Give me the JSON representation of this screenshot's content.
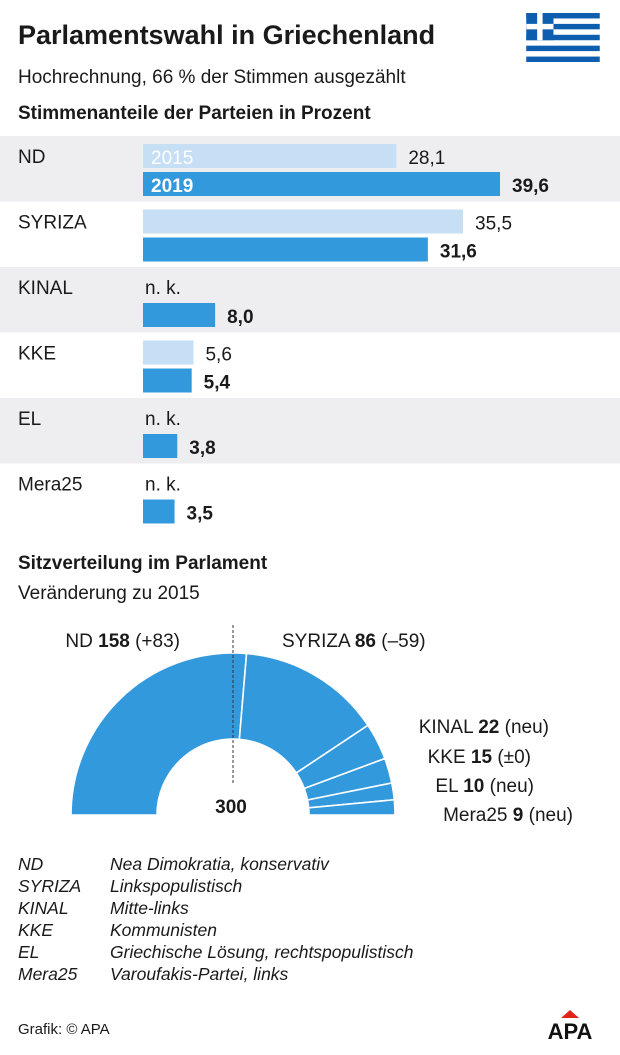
{
  "title": "Parlamentswahl in Griechenland",
  "subtitle": "Hochrechnung, 66 % der Stimmen ausgezählt",
  "section_shares": "Stimmenanteile der Parteien in Prozent",
  "section_seats": "Sitzverteilung im Parlament",
  "seats_subtitle": "Veränderung zu 2015",
  "seats_total": "300",
  "flag_icon": "greek-flag-icon",
  "colors": {
    "bar_2015": "#c6dff5",
    "bar_2019": "#3399dd",
    "row_band": "#eeeef0",
    "seat_fill": "#3399dd",
    "text": "#1a1a1a",
    "logo": "#e2231a"
  },
  "chart_data": [
    {
      "type": "bar",
      "orientation": "horizontal",
      "title": "Stimmenanteile der Parteien in Prozent",
      "categories": [
        "ND",
        "SYRIZA",
        "KINAL",
        "KKE",
        "EL",
        "Mera25"
      ],
      "series": [
        {
          "name": "2015",
          "values": [
            28.1,
            35.5,
            null,
            5.6,
            null,
            null
          ],
          "labels": [
            "28,1",
            "35,5",
            "n. k.",
            "5,6",
            "n. k.",
            "n. k."
          ]
        },
        {
          "name": "2019",
          "values": [
            39.6,
            31.6,
            8.0,
            5.4,
            3.8,
            3.5
          ],
          "labels": [
            "39,6",
            "31,6",
            "8,0",
            "5,4",
            "3,8",
            "3,5"
          ]
        }
      ],
      "xlim": [
        0,
        45
      ],
      "legend": "inline in first bars"
    },
    {
      "type": "pie",
      "variant": "half-donut",
      "title": "Sitzverteilung im Parlament",
      "subtitle": "Veränderung zu 2015",
      "total_label": "300",
      "slices": [
        {
          "party": "ND",
          "seats": 158,
          "seats_label": "158",
          "change": "(+83)"
        },
        {
          "party": "SYRIZA",
          "seats": 86,
          "seats_label": "86",
          "change": "(–59)"
        },
        {
          "party": "KINAL",
          "seats": 22,
          "seats_label": "22",
          "change": "(neu)"
        },
        {
          "party": "KKE",
          "seats": 15,
          "seats_label": "15",
          "change": "(±0)"
        },
        {
          "party": "EL",
          "seats": 10,
          "seats_label": "10",
          "change": "(neu)"
        },
        {
          "party": "Mera25",
          "seats": 9,
          "seats_label": "9",
          "change": "(neu)"
        }
      ]
    }
  ],
  "legend": [
    {
      "abbr": "ND",
      "desc": "Nea Dimokratia, konservativ"
    },
    {
      "abbr": "SYRIZA",
      "desc": "Linkspopulistisch"
    },
    {
      "abbr": "KINAL",
      "desc": "Mitte-links"
    },
    {
      "abbr": "KKE",
      "desc": "Kommunisten"
    },
    {
      "abbr": "EL",
      "desc": "Griechische Lösung, rechtspopulistisch"
    },
    {
      "abbr": "Mera25",
      "desc": "Varoufakis-Partei, links"
    }
  ],
  "footer": "Grafik: © APA",
  "logo_text": "APA"
}
